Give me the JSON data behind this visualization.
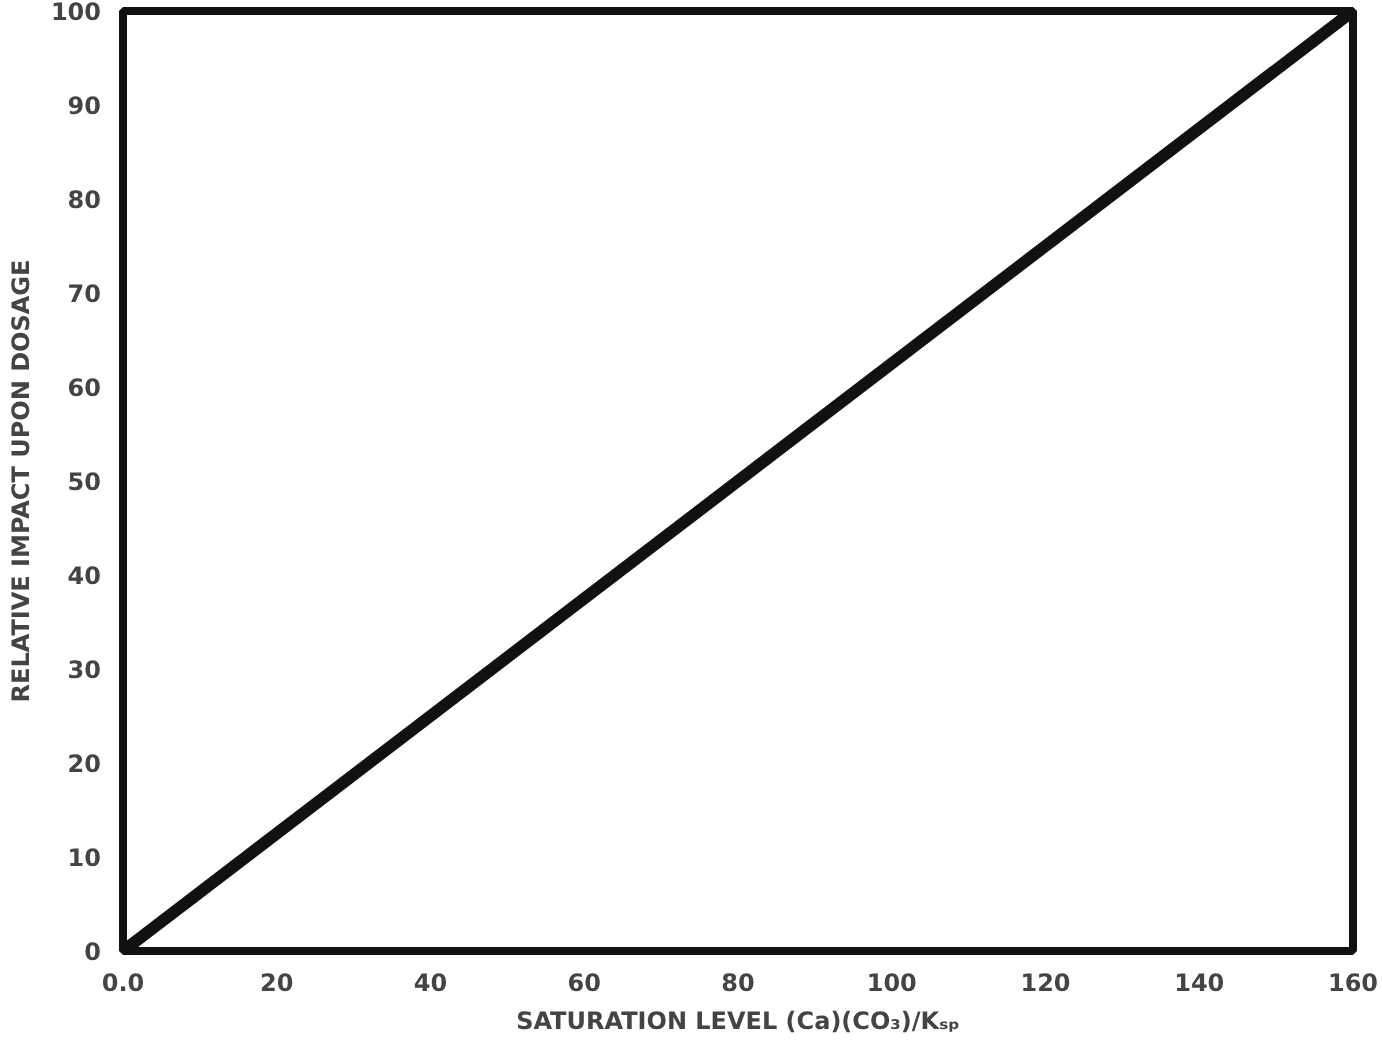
{
  "chart_data": {
    "type": "line",
    "xlabel": "SATURATION LEVEL (Ca)(CO₃)/Kₛₚ",
    "ylabel": "RELATIVE IMPACT UPON DOSAGE",
    "x": [
      0,
      160
    ],
    "series": [
      {
        "color": "#111111",
        "values": [
          0,
          100
        ]
      }
    ],
    "xlim": [
      0,
      160
    ],
    "ylim": [
      0,
      100
    ],
    "xticks": [
      {
        "value": 0,
        "label": "0.0"
      },
      20,
      40,
      60,
      80,
      100,
      120,
      140,
      160
    ],
    "yticks": [
      0,
      10,
      20,
      30,
      40,
      50,
      60,
      70,
      80,
      90,
      100
    ],
    "line_style": "solid"
  }
}
